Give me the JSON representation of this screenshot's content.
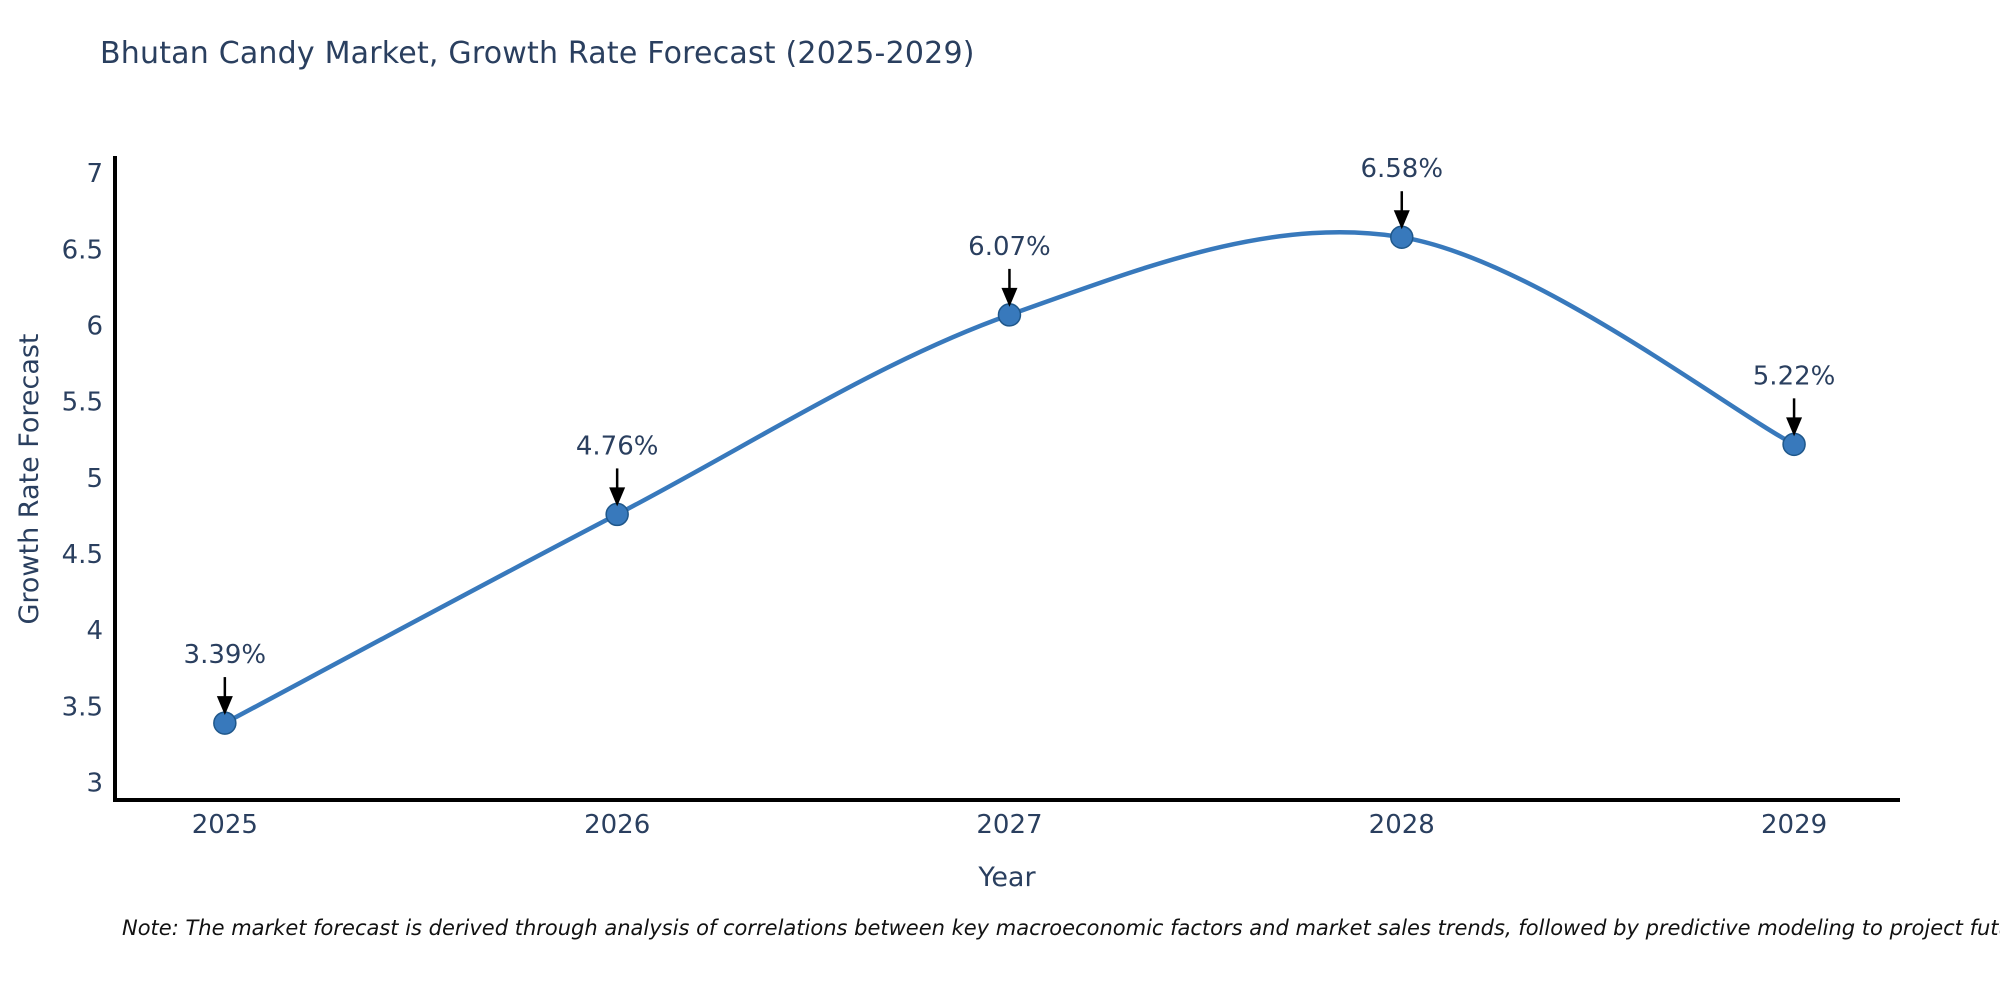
{
  "title": "Bhutan Candy Market, Growth Rate Forecast (2025-2029)",
  "footnote": "Note: The market forecast is derived through analysis of correlations between key macroeconomic factors and market sales trends, followed by predictive modeling to project future sales",
  "chart_data": {
    "type": "line",
    "title": "Bhutan Candy Market, Growth Rate Forecast (2025-2029)",
    "xlabel": "Year",
    "ylabel": "Growth Rate Forecast",
    "x": [
      2025,
      2026,
      2027,
      2028,
      2029
    ],
    "values": [
      3.39,
      4.76,
      6.07,
      6.58,
      5.22
    ],
    "point_labels": [
      "3.39%",
      "4.76%",
      "6.07%",
      "6.58%",
      "5.22%"
    ],
    "xticks": [
      2025,
      2026,
      2027,
      2028,
      2029
    ],
    "yticks": [
      3,
      3.5,
      4,
      4.5,
      5,
      5.5,
      6,
      6.5,
      7
    ],
    "xlim": [
      2024.72,
      2029.27
    ],
    "ylim": [
      2.885,
      7.1
    ],
    "line_shape": "spline",
    "markers": true,
    "grid": false,
    "legend": "none",
    "colors": {
      "line": "#3879bc",
      "marker_fill": "#3879bc",
      "marker_edge": "#1f578a",
      "axis_line": "#000000",
      "tick_text": "#2a3f5f",
      "title_text": "#2a3f5f",
      "annotation_text": "#2a3f5f",
      "annotation_arrow": "#000000",
      "background": "#ffffff"
    }
  }
}
